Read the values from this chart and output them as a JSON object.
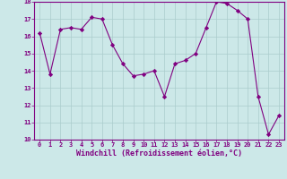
{
  "x": [
    0,
    1,
    2,
    3,
    4,
    5,
    6,
    7,
    8,
    9,
    10,
    11,
    12,
    13,
    14,
    15,
    16,
    17,
    18,
    19,
    20,
    21,
    22,
    23
  ],
  "y": [
    16.2,
    13.8,
    16.4,
    16.5,
    16.4,
    17.1,
    17.0,
    15.5,
    14.4,
    13.7,
    13.8,
    14.0,
    12.5,
    14.4,
    14.6,
    15.0,
    16.5,
    18.0,
    17.9,
    17.5,
    17.0,
    12.5,
    10.3,
    11.4
  ],
  "line_color": "#800080",
  "marker": "D",
  "marker_size": 2.2,
  "bg_color": "#cce8e8",
  "grid_color": "#aacccc",
  "xlabel": "Windchill (Refroidissement éolien,°C)",
  "ylim": [
    10,
    18
  ],
  "xlim": [
    -0.5,
    23.5
  ],
  "yticks": [
    10,
    11,
    12,
    13,
    14,
    15,
    16,
    17,
    18
  ],
  "xticks": [
    0,
    1,
    2,
    3,
    4,
    5,
    6,
    7,
    8,
    9,
    10,
    11,
    12,
    13,
    14,
    15,
    16,
    17,
    18,
    19,
    20,
    21,
    22,
    23
  ],
  "tick_fontsize": 5.0,
  "xlabel_fontsize": 6.0,
  "tick_color": "#800080",
  "spine_color": "#800080"
}
